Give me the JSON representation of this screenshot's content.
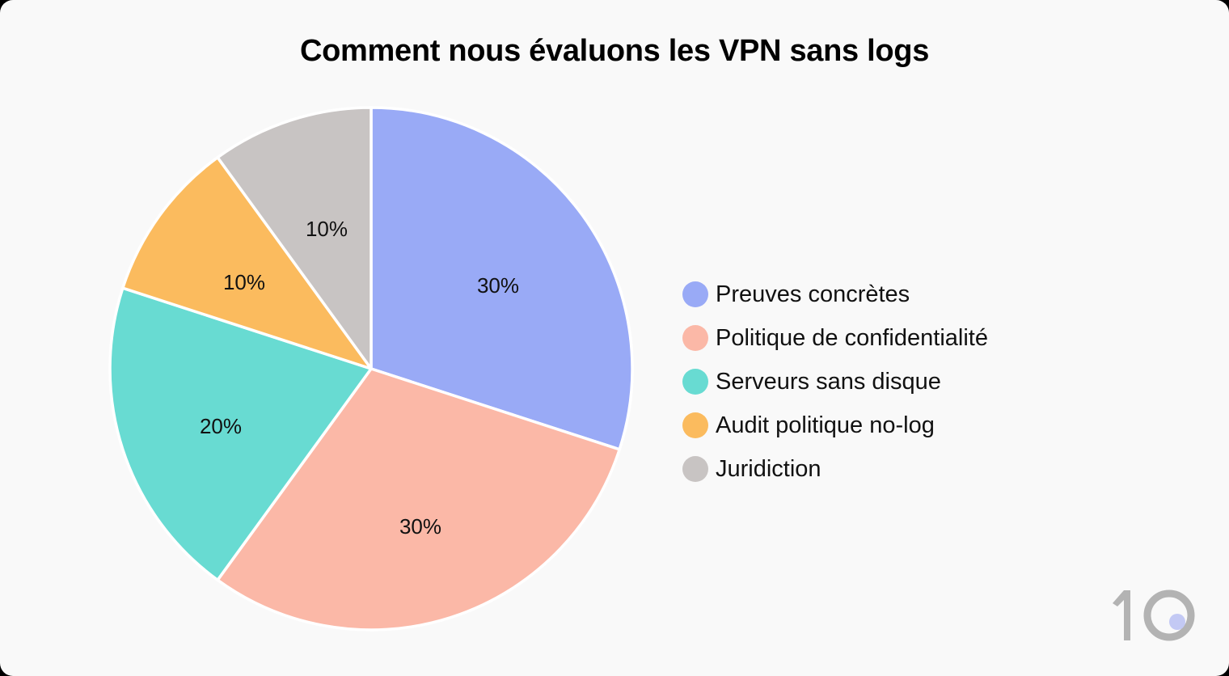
{
  "chart_data": {
    "type": "pie",
    "title": "Comment nous évaluons les VPN sans logs",
    "categories": [
      "Preuves concrètes",
      "Politique de confidentialité",
      "Serveurs sans disque",
      "Audit politique no-log",
      "Juridiction"
    ],
    "values": [
      30,
      30,
      20,
      10,
      10
    ],
    "labels": [
      "30%",
      "30%",
      "20%",
      "10%",
      "10%"
    ],
    "colors": [
      "#99aaf6",
      "#fbb8a7",
      "#68dbd2",
      "#fbbb5e",
      "#c8c4c3"
    ],
    "start_angle": "12 o'clock",
    "direction": "clockwise",
    "legend_position": "right"
  },
  "title": "Comment nous évaluons les VPN sans logs",
  "legend": [
    {
      "label": "Preuves concrètes",
      "color": "#99aaf6"
    },
    {
      "label": "Politique de confidentialité",
      "color": "#fbb8a7"
    },
    {
      "label": "Serveurs sans disque",
      "color": "#68dbd2"
    },
    {
      "label": "Audit politique no-log",
      "color": "#fbbb5e"
    },
    {
      "label": "Juridiction",
      "color": "#c8c4c3"
    }
  ],
  "slice_labels": [
    "30%",
    "30%",
    "20%",
    "10%",
    "10%"
  ],
  "logo": {
    "text": "10",
    "dot_color": "#c3c9f4",
    "color": "#b3b3b3"
  }
}
